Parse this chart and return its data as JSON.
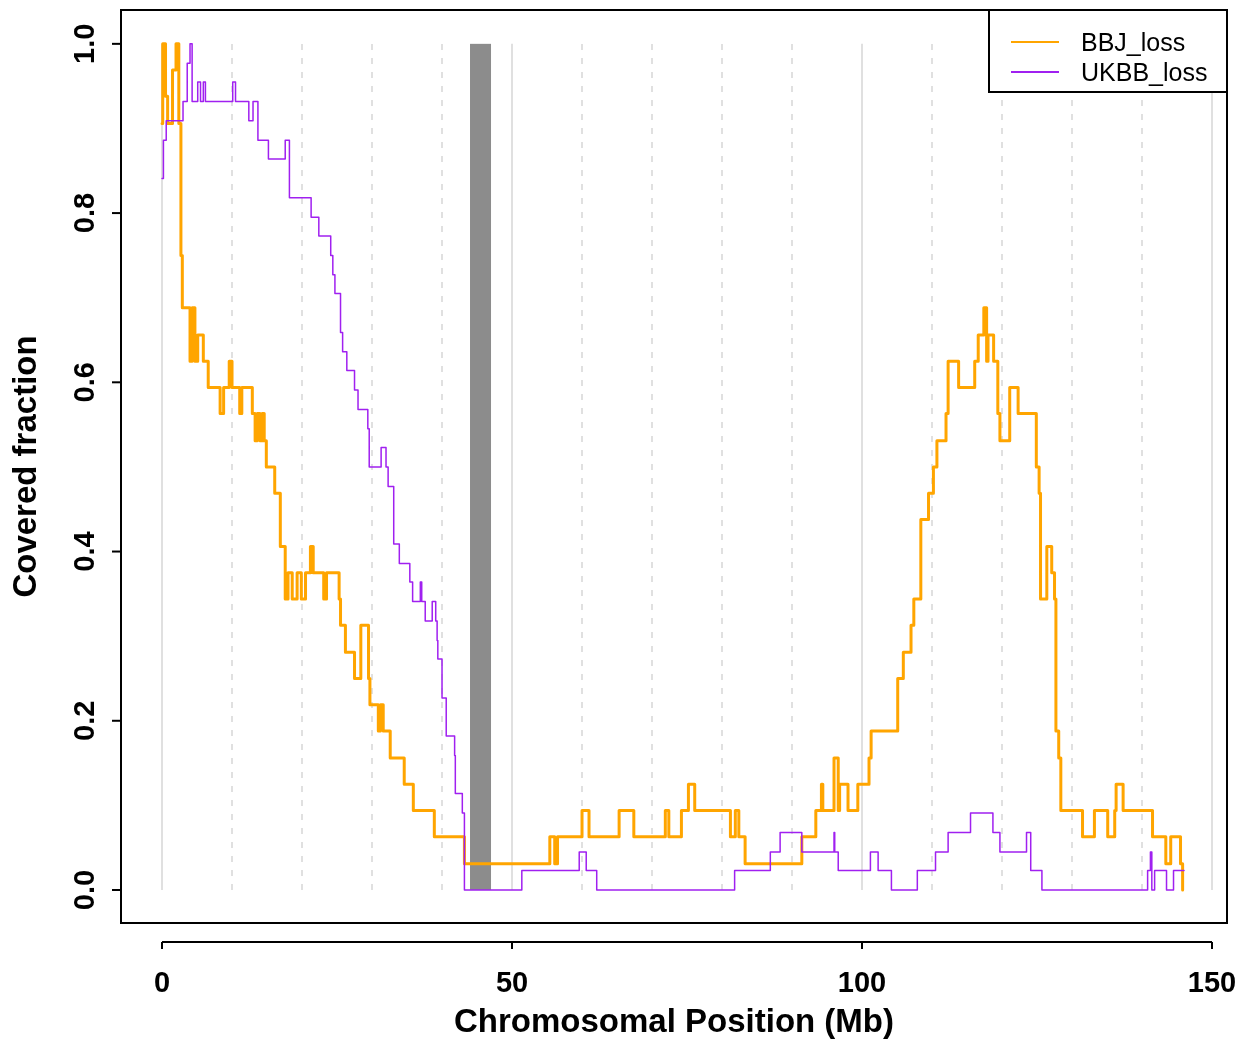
{
  "chart_data": {
    "type": "step",
    "xlabel": "Chromosomal Position (Mb)",
    "ylabel": "Covered fraction",
    "xlim": [
      -5.86,
      152.14
    ],
    "ylim": [
      -0.039,
      1.04
    ],
    "xticks": [
      0,
      {
        "value": 10,
        "label": null
      },
      {
        "value": 20,
        "label": null
      },
      {
        "value": 30,
        "label": null
      },
      {
        "value": 40,
        "label": null
      },
      50,
      {
        "value": 60,
        "label": null
      },
      {
        "value": 70,
        "label": null
      },
      {
        "value": 80,
        "label": null
      },
      {
        "value": 90,
        "label": null
      },
      100,
      {
        "value": 110,
        "label": null
      },
      {
        "value": 120,
        "label": null
      },
      {
        "value": 130,
        "label": null
      },
      {
        "value": 140,
        "label": null
      },
      150
    ],
    "yticks": [
      {
        "value": 0,
        "label": "0.0"
      },
      0.2,
      0.4,
      0.6,
      0.8,
      {
        "value": 1,
        "label": "1.0"
      }
    ],
    "grid": "x",
    "legend": "top right",
    "bands": [
      {
        "axis": "x",
        "from": 44,
        "to": 47,
        "color": "#8c8c8c"
      }
    ],
    "series": [
      {
        "name": "BBJ_loss",
        "color": "#ffa500",
        "x": [
          0,
          0.1,
          0.5,
          0.8,
          1.5,
          2.0,
          2.4,
          2.7,
          2.9,
          4.0,
          4.3,
          4.7,
          5.1,
          5.9,
          6.6,
          8.3,
          8.8,
          9.6,
          10.0,
          11.1,
          11.4,
          12.9,
          13.3,
          13.6,
          14.0,
          14.3,
          14.6,
          14.9,
          16.1,
          16.9,
          17.6,
          18.0,
          18.6,
          19.3,
          19.9,
          20.5,
          21.2,
          21.6,
          23.1,
          23.5,
          25.3,
          25.5,
          26.2,
          27.5,
          28.4,
          29.5,
          29.7,
          30.9,
          31.2,
          31.6,
          32.6,
          34.6,
          35.9,
          38.9,
          43.2,
          55.4,
          56.1,
          56.5,
          60,
          61,
          65.3,
          67.4,
          71.9,
          72.4,
          74.2,
          75.2,
          76.1,
          81.2,
          81.9,
          82.4,
          83.3,
          91.4,
          93.4,
          94.2,
          94.4,
          96.0,
          96.6,
          96.8,
          98,
          99.4,
          101,
          101.3,
          105.1,
          105.9,
          107,
          107.4,
          108.4,
          109.5,
          110.2,
          110.7,
          112,
          112.3,
          113.8,
          116.1,
          116.6,
          117.4,
          117.8,
          118,
          118.8,
          119.4,
          119.7,
          121.1,
          122.3,
          124.9,
          125.3,
          125.5,
          126.4,
          127.1,
          127.5,
          127.7,
          128.1,
          128.4,
          131.5,
          133.2,
          135.1,
          136.1,
          136.3,
          137.3,
          141.5,
          143.4,
          144.1,
          145.5,
          145.8
        ],
        "values": [
          0.906,
          1.0,
          0.938,
          0.906,
          0.969,
          1.0,
          0.906,
          0.75,
          0.688,
          0.625,
          0.688,
          0.625,
          0.656,
          0.625,
          0.594,
          0.563,
          0.594,
          0.625,
          0.594,
          0.563,
          0.594,
          0.563,
          0.531,
          0.563,
          0.531,
          0.563,
          0.531,
          0.5,
          0.469,
          0.406,
          0.344,
          0.375,
          0.344,
          0.375,
          0.344,
          0.375,
          0.406,
          0.375,
          0.344,
          0.375,
          0.344,
          0.313,
          0.281,
          0.25,
          0.313,
          0.25,
          0.219,
          0.188,
          0.219,
          0.188,
          0.156,
          0.125,
          0.094,
          0.063,
          0.031,
          0.063,
          0.031,
          0.063,
          0.094,
          0.063,
          0.094,
          0.063,
          0.094,
          0.063,
          0.094,
          0.125,
          0.094,
          0.063,
          0.094,
          0.063,
          0.031,
          0.063,
          0.094,
          0.125,
          0.094,
          0.156,
          0.094,
          0.125,
          0.094,
          0.125,
          0.156,
          0.188,
          0.25,
          0.281,
          0.313,
          0.344,
          0.438,
          0.469,
          0.5,
          0.531,
          0.563,
          0.625,
          0.594,
          0.625,
          0.656,
          0.688,
          0.625,
          0.656,
          0.625,
          0.563,
          0.531,
          0.594,
          0.563,
          0.5,
          0.469,
          0.344,
          0.406,
          0.375,
          0.344,
          0.188,
          0.156,
          0.094,
          0.063,
          0.094,
          0.063,
          0.094,
          0.125,
          0.094,
          0.063,
          0.031,
          0.063,
          0.031,
          0
        ]
      },
      {
        "name": "UKBB_loss",
        "color": "#a020f0",
        "x": [
          0,
          0.2,
          0.6,
          3.0,
          3.6,
          4.0,
          4.3,
          5.1,
          5.5,
          5.9,
          6.2,
          10.1,
          10.5,
          12.4,
          13.0,
          13.7,
          15.2,
          17.6,
          18.2,
          21.3,
          22.4,
          24.1,
          24.4,
          24.7,
          25.5,
          25.8,
          26.4,
          27.5,
          28.0,
          29.4,
          29.6,
          31.3,
          32.0,
          32.3,
          33.1,
          33.9,
          35.4,
          35.8,
          36.9,
          37.1,
          37.6,
          38.6,
          39.1,
          39.3,
          39.4,
          40.0,
          40.6,
          41.8,
          41.9,
          42.9,
          43.2,
          51.4,
          59.6,
          60.6,
          62.1,
          81.8,
          86.9,
          88.3,
          91.4,
          96.0,
          96.1,
          96.6,
          101.2,
          102.3,
          104.2,
          107.9,
          110.5,
          112.3,
          115.5,
          118.7,
          119.7,
          123.5,
          124.1,
          125.7,
          140.8,
          141.2,
          141.4,
          141.8,
          143.5,
          144.5,
          146
        ],
        "values": [
          0.841,
          0.886,
          0.909,
          0.932,
          0.977,
          1.0,
          0.932,
          0.955,
          0.932,
          0.955,
          0.932,
          0.955,
          0.932,
          0.909,
          0.932,
          0.886,
          0.864,
          0.886,
          0.818,
          0.795,
          0.773,
          0.75,
          0.727,
          0.705,
          0.659,
          0.636,
          0.614,
          0.591,
          0.568,
          0.545,
          0.5,
          0.523,
          0.5,
          0.477,
          0.409,
          0.386,
          0.364,
          0.341,
          0.364,
          0.341,
          0.318,
          0.341,
          0.318,
          0.295,
          0.273,
          0.227,
          0.182,
          0.159,
          0.114,
          0.091,
          0,
          0.023,
          0.045,
          0.023,
          0,
          0.023,
          0.045,
          0.068,
          0.045,
          0.068,
          0.045,
          0.023,
          0.045,
          0.023,
          0,
          0.023,
          0.045,
          0.068,
          0.091,
          0.068,
          0.045,
          0.068,
          0.023,
          0,
          0.023,
          0.045,
          0,
          0.023,
          0,
          0.023,
          0.023
        ]
      }
    ]
  }
}
